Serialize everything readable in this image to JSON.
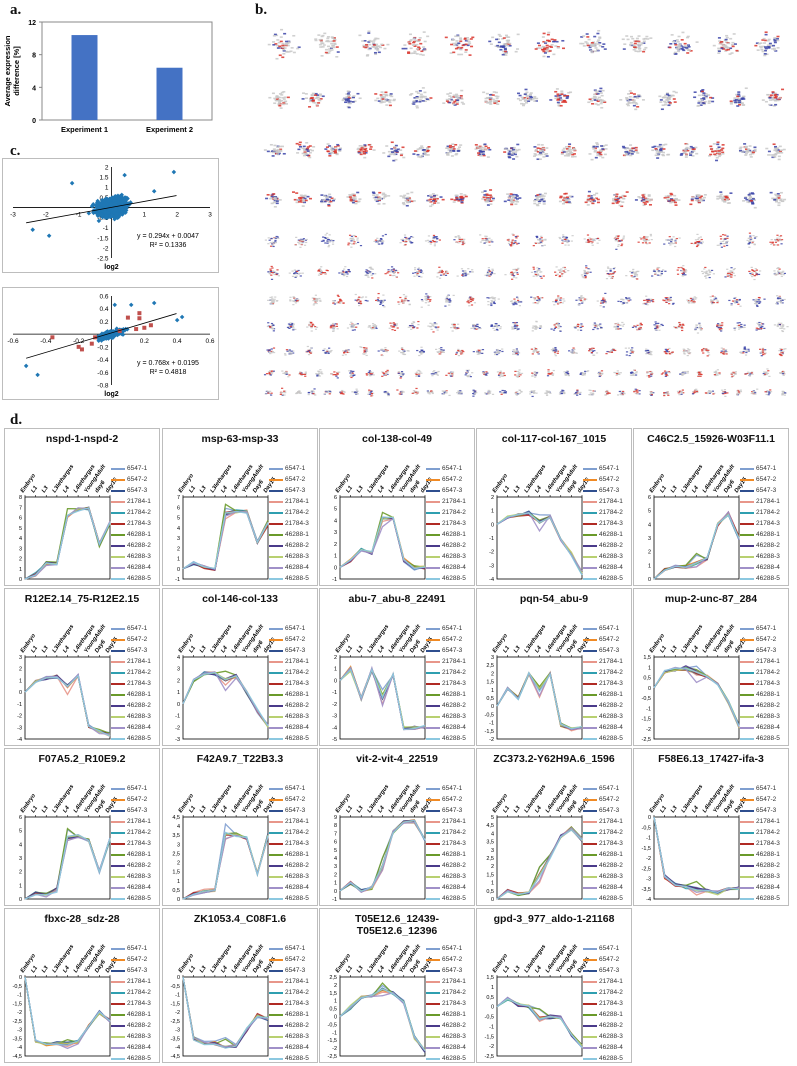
{
  "panels": {
    "a": "a.",
    "b": "b.",
    "c": "c.",
    "d": "d."
  },
  "chart_data": [
    {
      "id": "a",
      "type": "bar",
      "title": "",
      "categories": [
        "Experiment 1",
        "Experiment 2"
      ],
      "values": [
        10.4,
        6.4
      ],
      "xlabel": "",
      "ylabel": "Average expression difference [%]",
      "ylim": [
        0,
        12
      ],
      "yticks": [
        0,
        4,
        8,
        12
      ],
      "color": "#4472C4"
    },
    {
      "id": "b",
      "type": "network",
      "title": "",
      "description": "Grid of gene co-expression network clusters; nodes colored red (up), blue (down), grey (unchanged)",
      "rows": 11,
      "colors": {
        "up": "#d9342b",
        "down": "#3a43a8",
        "neutral": "#c8c8c8"
      }
    },
    {
      "id": "c1",
      "type": "scatter",
      "xlabel": "log2",
      "ylabel": "",
      "xlim": [
        -3,
        3
      ],
      "ylim": [
        -2.5,
        2
      ],
      "xticks": [
        -3,
        -2,
        -1,
        0,
        1,
        2,
        3
      ],
      "yticks": [
        -2.5,
        -2,
        -1.5,
        -1,
        -0.5,
        0,
        0.5,
        1,
        1.5,
        2
      ],
      "series": [
        {
          "name": "genes",
          "color": "#1f77b4",
          "marker": "diamond"
        }
      ],
      "trendline": {
        "equation": "y = 0.294x + 0.0047",
        "r2": "R² = 0.1336",
        "slope": 0.294,
        "intercept": 0.0047
      }
    },
    {
      "id": "c2",
      "type": "scatter",
      "xlabel": "log2",
      "ylabel": "",
      "xlim": [
        -0.6,
        0.6
      ],
      "ylim": [
        -0.8,
        0.6
      ],
      "xticks": [
        -0.6,
        -0.4,
        -0.2,
        0,
        0.2,
        0.4,
        0.6
      ],
      "yticks": [
        -0.8,
        -0.6,
        -0.4,
        -0.2,
        0,
        0.2,
        0.4,
        0.6
      ],
      "series": [
        {
          "name": "genes",
          "color": "#1f77b4",
          "marker": "diamond"
        },
        {
          "name": "highlighted",
          "color": "#c0504d",
          "marker": "square"
        }
      ],
      "trendline": {
        "equation": "y = 0.768x + 0.0195",
        "r2": "R² = 0.4818",
        "slope": 0.768,
        "intercept": 0.0195
      }
    },
    {
      "id": "d",
      "type": "line",
      "x": [
        "Embryo",
        "L1",
        "L3",
        "L3lethargus",
        "L4",
        "L4lethargus",
        "YoungAdult",
        "Day6",
        "Day15"
      ],
      "legend": [
        "6547-1",
        "6547-2",
        "6547-3",
        "21784-1",
        "21784-2",
        "21784-3",
        "46288-1",
        "46288-2",
        "46288-3",
        "46288-4",
        "46288-5"
      ],
      "legend_colors": [
        "#7f9fd0",
        "#f08a24",
        "#2f4f8f",
        "#e8968a",
        "#2f9fb0",
        "#b02a24",
        "#6a9a2a",
        "#4a3a8a",
        "#b8d070",
        "#a090c8",
        "#8cc8e0"
      ],
      "subplots": [
        {
          "title": "nspd-1-nspd-2",
          "xticks": [
            "Embryo",
            "L1",
            "L3",
            "L3lethargus",
            "L4",
            "L4lethargus",
            "YoungAdult",
            "day6",
            "day15"
          ],
          "ylim": [
            0,
            8
          ],
          "yticks": [
            0,
            1,
            2,
            3,
            4,
            5,
            6,
            7,
            8
          ],
          "values": [
            0,
            0.4,
            1.5,
            1.5,
            6.2,
            6.8,
            6.9,
            3.4,
            5.5
          ]
        },
        {
          "title": "msp-63-msp-33",
          "xticks": [
            "Embryo",
            "L1",
            "L3",
            "L3lethargus",
            "L4",
            "L4lethargus",
            "YoungAdult",
            "Day6",
            "Day15"
          ],
          "ylim": [
            -1,
            7
          ],
          "yticks": [
            -1,
            0,
            1,
            2,
            3,
            4,
            5,
            6,
            7
          ],
          "values": [
            0,
            0.6,
            0.2,
            0,
            5.4,
            5.6,
            5.6,
            2.6,
            4.5
          ]
        },
        {
          "title": "col-138-col-49",
          "xticks": [
            "Embryo",
            "L1",
            "L3",
            "L3lethargus",
            "L4",
            "L4lethargus",
            "YoungAdult",
            "day6",
            "day15"
          ],
          "ylim": [
            -1,
            6
          ],
          "yticks": [
            -1,
            0,
            1,
            2,
            3,
            4,
            5,
            6
          ],
          "values": [
            0,
            0.6,
            1.5,
            1.2,
            4.2,
            4.2,
            0.6,
            0,
            0
          ]
        },
        {
          "title": "col-117-col-167_1015",
          "xticks": [
            "Embryo",
            "L1",
            "L3",
            "L3lethargus",
            "L4",
            "L4lethargus",
            "YoungAdult",
            "day6",
            "day15"
          ],
          "ylim": [
            -4,
            2
          ],
          "yticks": [
            -4,
            -3,
            -2,
            -1,
            0,
            1,
            2
          ],
          "values": [
            0,
            0.5,
            0.7,
            0.8,
            0.2,
            0.6,
            -1.1,
            -2.2,
            -3.6
          ]
        },
        {
          "title": "C46C2.5_15926-W03F11.1",
          "xticks": [
            "Embryo",
            "L1",
            "L3",
            "L3lethargus",
            "L4",
            "L4lethargus",
            "YoungAdult",
            "Day6",
            "Day15"
          ],
          "ylim": [
            0,
            6
          ],
          "yticks": [
            0,
            1,
            2,
            3,
            4,
            5,
            6
          ],
          "values": [
            0,
            0.7,
            0.9,
            0.9,
            1.2,
            1.5,
            4,
            4.8,
            3
          ]
        },
        {
          "title": "R12E2.14_75-R12E2.15",
          "xticks": [
            "Embryo",
            "L1",
            "L3",
            "L3lethargus",
            "L4",
            "L4lethargus",
            "YoungAdult",
            "Day6",
            "Day15"
          ],
          "ylim": [
            -4,
            3
          ],
          "yticks": [
            -4,
            -3,
            -2,
            -1,
            0,
            1,
            2,
            3
          ],
          "values": [
            0,
            0.9,
            1.2,
            1.3,
            0.5,
            1.4,
            -2.9,
            -3.4,
            -3.6
          ]
        },
        {
          "title": "col-146-col-133",
          "xticks": [
            "Embryo",
            "L1",
            "L3",
            "L3lethargus",
            "L4",
            "L4lethargus",
            "YoungAdult",
            "day6",
            "day15"
          ],
          "ylim": [
            -3,
            4
          ],
          "yticks": [
            -3,
            -2,
            -1,
            0,
            1,
            2,
            3,
            4
          ],
          "values": [
            0,
            2,
            2.6,
            2.6,
            2,
            2.4,
            1,
            -0.6,
            -1.9
          ]
        },
        {
          "title": "abu-7_abu-8_22491",
          "xticks": [
            "Embryo",
            "L1",
            "L3",
            "L3lethargus",
            "L4",
            "L4lethargus",
            "YoungAdult",
            "Day6",
            "Day15"
          ],
          "ylim": [
            -5,
            2
          ],
          "yticks": [
            -5,
            -4,
            -3,
            -2,
            -1,
            0,
            1,
            2
          ],
          "values": [
            0,
            1,
            -1.5,
            0.9,
            -1.5,
            0.5,
            -4.1,
            -4.1,
            -4
          ]
        },
        {
          "title": "pqn-54_abu-9",
          "xticks": [
            "Embryo",
            "L1",
            "L3",
            "L3lethargus",
            "L4",
            "L4lethargus",
            "YoungAdult",
            "Day6",
            "Day15"
          ],
          "ylim": [
            -2,
            3
          ],
          "yticks": [
            -2,
            -1.5,
            -1,
            -0.5,
            0,
            0.5,
            1,
            1.5,
            2,
            2.5,
            3
          ],
          "values": [
            0,
            1.1,
            0.5,
            2,
            1,
            2,
            -1.1,
            -1.4,
            -1.3
          ]
        },
        {
          "title": "mup-2-unc-87_284",
          "xticks": [
            "Embryo",
            "L1",
            "L3",
            "L3lethargus",
            "L4",
            "L4lethargus",
            "YoungAdult",
            "day6",
            "day15"
          ],
          "ylim": [
            -2.5,
            1.5
          ],
          "yticks": [
            -2.5,
            -2,
            -1.5,
            -1,
            -0.5,
            0,
            0.5,
            1,
            1.5
          ],
          "values": [
            0,
            0.8,
            0.9,
            0.95,
            0.7,
            0.55,
            0.2,
            -0.7,
            -1.9
          ]
        },
        {
          "title": "F07A5.2_R10E9.2",
          "xticks": [
            "Embryo",
            "L1",
            "L3",
            "L3lethargus",
            "L4",
            "L4lethargus",
            "YoungAdult",
            "Day6",
            "Day15"
          ],
          "ylim": [
            0,
            6
          ],
          "yticks": [
            0,
            1,
            2,
            3,
            4,
            5,
            6
          ],
          "values": [
            0,
            0.4,
            0.3,
            0.7,
            4.5,
            4.6,
            4.3,
            2,
            4.4
          ]
        },
        {
          "title": "F42A9.7_T22B3.3",
          "xticks": [
            "Embryo",
            "L1",
            "L3",
            "L3lethargus",
            "L4",
            "L4lethargus",
            "YoungAdult",
            "Day6",
            "Day15"
          ],
          "ylim": [
            0,
            4.5
          ],
          "yticks": [
            0,
            0.5,
            1,
            1.5,
            2,
            2.5,
            3,
            3.5,
            4,
            4.5
          ],
          "values": [
            0,
            0.3,
            0.4,
            0.5,
            3.6,
            3.5,
            3.3,
            1.4,
            3.5
          ]
        },
        {
          "title": "vit-2-vit-4_22519",
          "xticks": [
            "Embryo",
            "L1",
            "L3",
            "L3lethargus",
            "L4",
            "L4lethargus",
            "YoungAdult",
            "day6",
            "day15"
          ],
          "ylim": [
            -1,
            9
          ],
          "yticks": [
            -1,
            0,
            1,
            2,
            3,
            4,
            5,
            6,
            7,
            8,
            9
          ],
          "values": [
            0,
            1,
            0,
            0.4,
            3,
            7.2,
            8.4,
            8.5,
            6.2
          ]
        },
        {
          "title": "ZC373.2-Y62H9A.6_1596",
          "xticks": [
            "Embryo",
            "L1",
            "L3",
            "L3lethargus",
            "L4",
            "L4lethargus",
            "YoungAdult",
            "day6",
            "day15"
          ],
          "ylim": [
            0,
            5
          ],
          "yticks": [
            0,
            0.5,
            1,
            1.5,
            2,
            2.5,
            3,
            3.5,
            4,
            4.5,
            5
          ],
          "values": [
            0,
            0.5,
            0.3,
            0.4,
            1.5,
            2.6,
            3.8,
            4.3,
            3.6
          ]
        },
        {
          "title": "F58E6.13_17427-ifa-3",
          "xticks": [
            "Embryo",
            "L1",
            "L3",
            "L3lethargus",
            "L4",
            "L4lethargus",
            "YoungAdult",
            "Day6",
            "Day15"
          ],
          "ylim": [
            -4,
            0
          ],
          "yticks": [
            -4,
            -3.5,
            -3,
            -2.5,
            -2,
            -1.5,
            -1,
            -0.5,
            0
          ],
          "values": [
            0,
            -2.9,
            -3.3,
            -3.4,
            -3.5,
            -3.6,
            -3.7,
            -3.5,
            -3.5
          ]
        },
        {
          "title": "fbxc-28_sdz-28",
          "xticks": [
            "Embryo",
            "L1",
            "L3",
            "L3lethargus",
            "L4",
            "L4lethargus",
            "YoungAdult",
            "Day6",
            "Day15"
          ],
          "ylim": [
            -4.5,
            0
          ],
          "yticks": [
            -4.5,
            -4,
            -3.5,
            -3,
            -2.5,
            -2,
            -1.5,
            -1,
            -0.5,
            0
          ],
          "values": [
            0,
            -3.7,
            -3.8,
            -3.8,
            -3.8,
            -3.7,
            -2.8,
            -2,
            -2.5
          ]
        },
        {
          "title": "ZK1053.4_C08F1.6",
          "xticks": [
            "Embryo",
            "L1",
            "L3",
            "L3lethargus",
            "L4",
            "L4lethargus",
            "YoungAdult",
            "Day6",
            "Day15"
          ],
          "ylim": [
            -4.5,
            0
          ],
          "yticks": [
            -4.5,
            -4,
            -3.5,
            -3,
            -2.5,
            -2,
            -1.5,
            -1,
            -0.5,
            0
          ],
          "values": [
            0,
            -3.5,
            -3.8,
            -3.8,
            -4,
            -3.9,
            -3,
            -2.2,
            -2.4
          ]
        },
        {
          "title": "T05E12.6_12439-T05E12.6_12396",
          "xticks": [
            "Embryo",
            "L1",
            "L3",
            "L3lethargus",
            "L4",
            "L4lethargus",
            "YoungAdult",
            "Day6",
            "Day15"
          ],
          "ylim": [
            -2.5,
            2.5
          ],
          "yticks": [
            -2.5,
            -2,
            -1.5,
            -1,
            -0.5,
            0,
            0.5,
            1,
            1.5,
            2,
            2.5
          ],
          "values": [
            0,
            0.6,
            1.2,
            1.3,
            1.7,
            1.5,
            0.9,
            -1.3,
            -2.2
          ]
        },
        {
          "title": "gpd-3_977_aldo-1-21168",
          "xticks": [
            "Embryo",
            "L1",
            "L3",
            "L3lethargus",
            "L4",
            "L4lethargus",
            "YoungAdult",
            "Day6",
            "Day15"
          ],
          "ylim": [
            -2.5,
            1.5
          ],
          "yticks": [
            -2.5,
            -2,
            -1.5,
            -1,
            -0.5,
            0,
            0.5,
            1,
            1.5
          ],
          "values": [
            0,
            0.4,
            0.1,
            0,
            -0.6,
            -0.5,
            -0.6,
            -1.4,
            -2
          ]
        }
      ]
    }
  ]
}
